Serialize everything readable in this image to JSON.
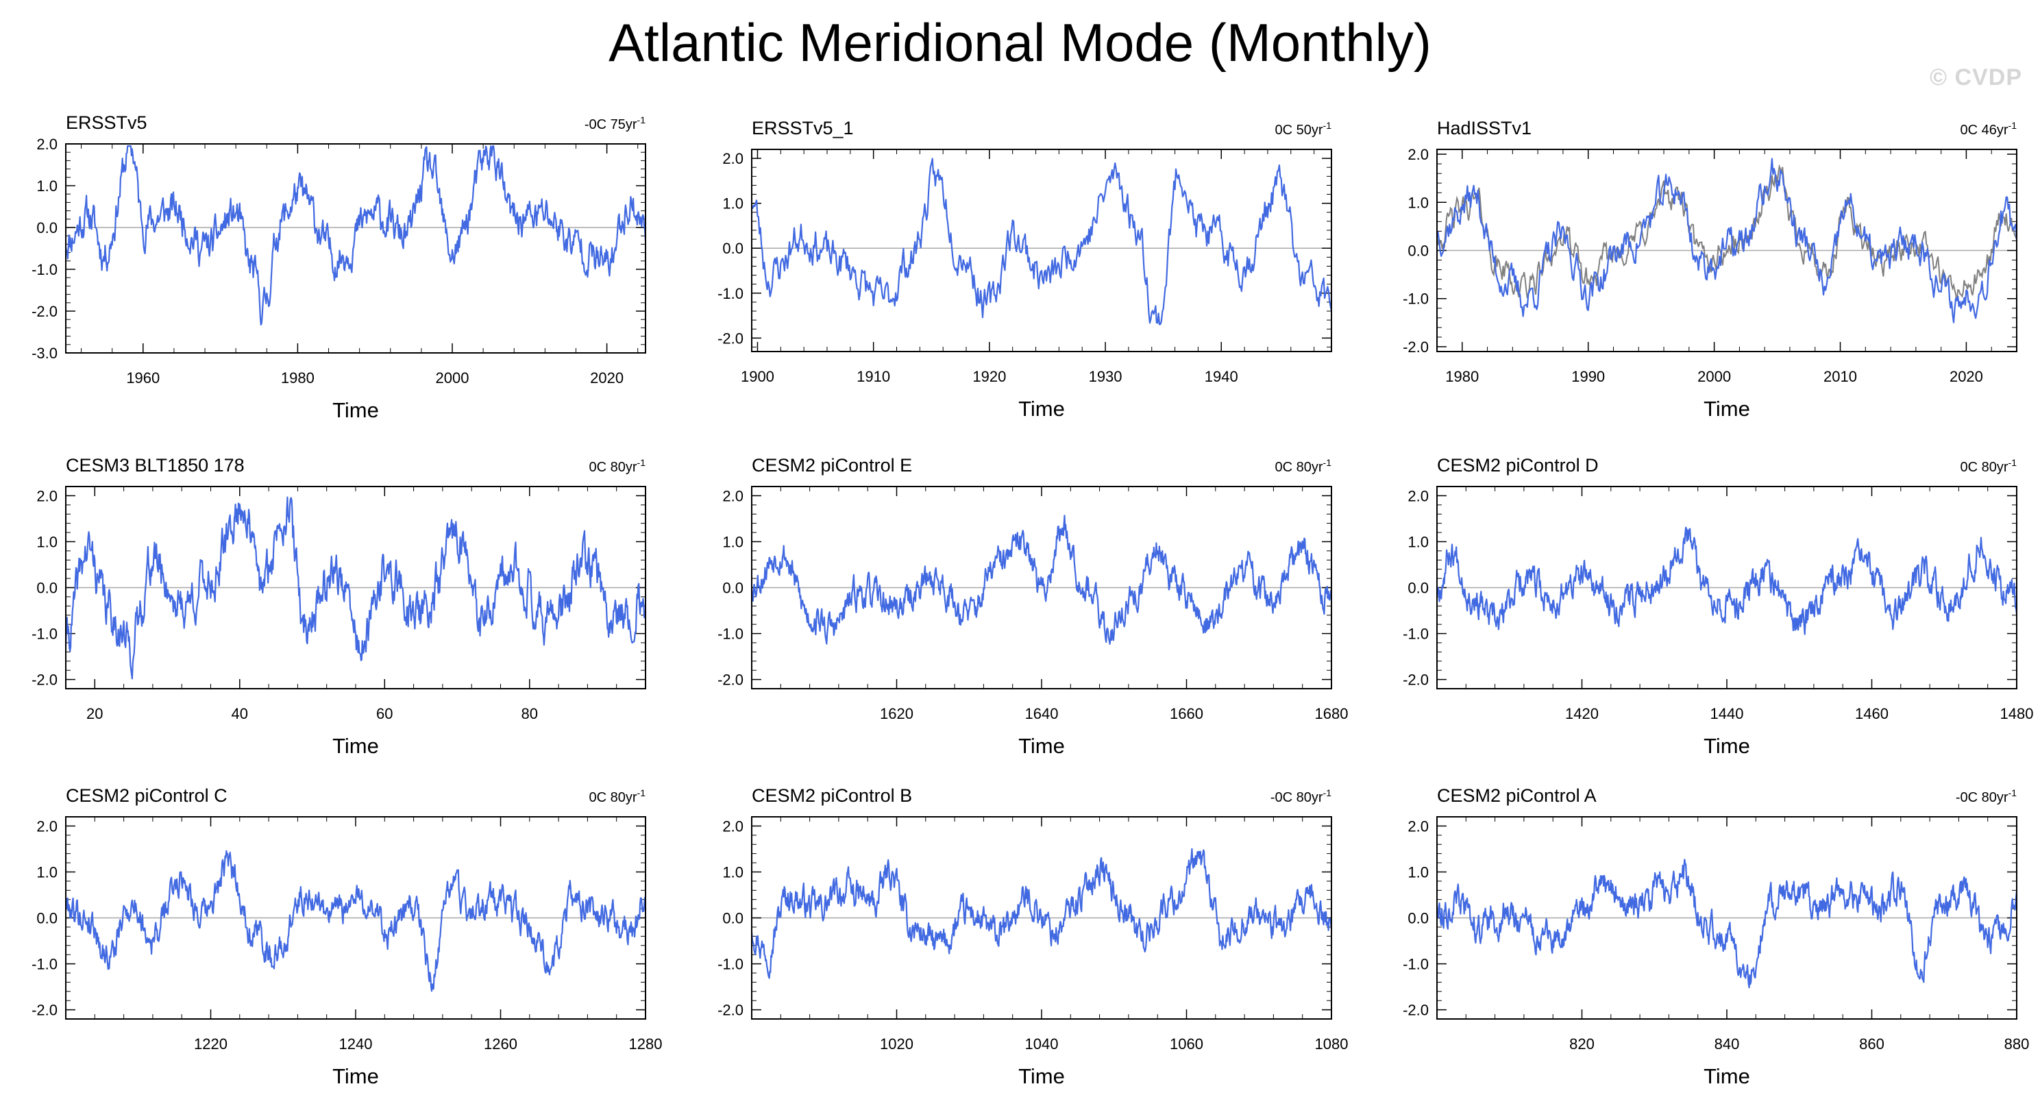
{
  "title": "Atlantic Meridional Mode (Monthly)",
  "watermark": "© CVDP",
  "colors": {
    "series": "#4169e1",
    "secondary_series": "#808080",
    "zero_line": "#a8a8a8",
    "axis": "#000000"
  },
  "chart_data": [
    {
      "type": "line",
      "title": "ERSSTv5",
      "trend": "-0C 75yr",
      "trend_unit": "-1",
      "xlabel": "Time",
      "xlim": [
        1950,
        2025
      ],
      "ylim": [
        -3.0,
        2.0
      ],
      "xticks": [
        1960,
        1980,
        2000,
        2020
      ],
      "xtick_labels": [
        "1960",
        "1980",
        "2000",
        "2020"
      ],
      "yticks": [
        -3.0,
        -2.0,
        -1.0,
        0.0,
        1.0,
        2.0
      ],
      "ytick_labels": [
        "-3.0",
        "-2.0",
        "-1.0",
        "0.0",
        "1.0",
        "2.0"
      ],
      "series_seed": 11,
      "series_anchors": [
        [
          1950,
          -0.3
        ],
        [
          1953,
          0.3
        ],
        [
          1955,
          -0.6
        ],
        [
          1958.5,
          1.9
        ],
        [
          1960,
          0.1
        ],
        [
          1964,
          0.4
        ],
        [
          1968,
          -0.5
        ],
        [
          1972,
          0.3
        ],
        [
          1974,
          -1.0
        ],
        [
          1975.5,
          -1.9
        ],
        [
          1978,
          0.2
        ],
        [
          1980,
          0.8
        ],
        [
          1985,
          -0.7
        ],
        [
          1990,
          0.3
        ],
        [
          1994,
          -0.2
        ],
        [
          1997,
          1.4
        ],
        [
          2000,
          -0.6
        ],
        [
          2005,
          1.8
        ],
        [
          2008,
          0.2
        ],
        [
          2012,
          0.3
        ],
        [
          2016,
          -0.4
        ],
        [
          2020,
          -0.9
        ],
        [
          2023,
          0.6
        ],
        [
          2025,
          0.0
        ]
      ],
      "series_noise": 0.45,
      "secondary_series": false
    },
    {
      "type": "line",
      "title": "ERSSTv5_1",
      "trend": "0C 50yr",
      "trend_unit": "-1",
      "xlabel": "Time",
      "xlim": [
        1899.5,
        1949.5
      ],
      "ylim": [
        -2.3,
        2.2
      ],
      "xticks": [
        1900,
        1910,
        1920,
        1930,
        1940
      ],
      "xtick_labels": [
        "1900",
        "1910",
        "1920",
        "1930",
        "1940"
      ],
      "yticks": [
        -2.0,
        -1.0,
        0.0,
        1.0,
        2.0
      ],
      "ytick_labels": [
        "-2.0",
        "-1.0",
        "0.0",
        "1.0",
        "2.0"
      ],
      "series_seed": 23,
      "series_anchors": [
        [
          1899.5,
          1.1
        ],
        [
          1901,
          -0.6
        ],
        [
          1904,
          0.3
        ],
        [
          1907,
          -0.3
        ],
        [
          1911,
          -1.2
        ],
        [
          1913,
          -0.3
        ],
        [
          1915.5,
          1.5
        ],
        [
          1917.5,
          0.0
        ],
        [
          1920,
          -1.3
        ],
        [
          1922,
          0.3
        ],
        [
          1925,
          -0.7
        ],
        [
          1928,
          0.2
        ],
        [
          1931,
          1.6
        ],
        [
          1932.5,
          0.6
        ],
        [
          1934.5,
          -1.6
        ],
        [
          1936.5,
          1.8
        ],
        [
          1938,
          0.4
        ],
        [
          1942,
          -0.3
        ],
        [
          1945,
          1.4
        ],
        [
          1947,
          -0.7
        ],
        [
          1949.5,
          -1.2
        ]
      ],
      "series_noise": 0.45,
      "secondary_series": false
    },
    {
      "type": "line",
      "title": "HadISSTv1",
      "trend": "0C 46yr",
      "trend_unit": "-1",
      "xlabel": "Time",
      "xlim": [
        1978,
        2024
      ],
      "ylim": [
        -2.1,
        2.1
      ],
      "xticks": [
        1980,
        1990,
        2000,
        2010,
        2020
      ],
      "xtick_labels": [
        "1980",
        "1990",
        "2000",
        "2010",
        "2020"
      ],
      "yticks": [
        -2.0,
        -1.0,
        0.0,
        1.0,
        2.0
      ],
      "ytick_labels": [
        "-2.0",
        "-1.0",
        "0.0",
        "1.0",
        "2.0"
      ],
      "series_seed": 37,
      "series_anchors": [
        [
          1978,
          0.4
        ],
        [
          1981,
          1.1
        ],
        [
          1983,
          -0.5
        ],
        [
          1985,
          -1.0
        ],
        [
          1988,
          0.2
        ],
        [
          1990,
          -0.8
        ],
        [
          1993,
          0.1
        ],
        [
          1997,
          1.3
        ],
        [
          1999,
          -0.3
        ],
        [
          2002,
          0.1
        ],
        [
          2005,
          1.6
        ],
        [
          2007,
          0.2
        ],
        [
          2009,
          -0.8
        ],
        [
          2010.5,
          0.9
        ],
        [
          2013,
          -0.3
        ],
        [
          2016,
          0.2
        ],
        [
          2019,
          -1.1
        ],
        [
          2021,
          -0.8
        ],
        [
          2023,
          0.8
        ],
        [
          2024,
          0.0
        ]
      ],
      "series_noise": 0.4,
      "secondary_series": true
    },
    {
      "type": "line",
      "title": "CESM3 BLT1850 178",
      "trend": "0C 80yr",
      "trend_unit": "-1",
      "xlabel": "Time",
      "xlim": [
        16,
        96
      ],
      "ylim": [
        -2.2,
        2.2
      ],
      "xticks": [
        20,
        40,
        60,
        80
      ],
      "xtick_labels": [
        "20",
        "40",
        "60",
        "80"
      ],
      "yticks": [
        -2.0,
        -1.0,
        0.0,
        1.0,
        2.0
      ],
      "ytick_labels": [
        "-2.0",
        "-1.0",
        "0.0",
        "1.0",
        "2.0"
      ],
      "series_seed": 41,
      "series_anchors": [
        [
          16,
          -1.1
        ],
        [
          19,
          0.8
        ],
        [
          22,
          -0.5
        ],
        [
          25,
          -1.3
        ],
        [
          28,
          0.6
        ],
        [
          32,
          -0.4
        ],
        [
          36,
          0.2
        ],
        [
          40.5,
          1.8
        ],
        [
          43,
          0.0
        ],
        [
          46.5,
          1.8
        ],
        [
          49,
          -0.8
        ],
        [
          53,
          0.4
        ],
        [
          57,
          -1.3
        ],
        [
          60,
          0.3
        ],
        [
          65,
          -0.6
        ],
        [
          70.5,
          1.2
        ],
        [
          73,
          -0.8
        ],
        [
          78,
          0.3
        ],
        [
          83,
          -0.7
        ],
        [
          88,
          0.5
        ],
        [
          92,
          -0.6
        ],
        [
          96,
          -0.3
        ]
      ],
      "series_noise": 0.5,
      "secondary_series": false
    },
    {
      "type": "line",
      "title": "CESM2 piControl E",
      "trend": "0C 80yr",
      "trend_unit": "-1",
      "xlabel": "Time",
      "xlim": [
        1600,
        1680
      ],
      "ylim": [
        -2.2,
        2.2
      ],
      "xticks": [
        1620,
        1640,
        1660,
        1680
      ],
      "xtick_labels": [
        "1620",
        "1640",
        "1660",
        "1680"
      ],
      "yticks": [
        -2.0,
        -1.0,
        0.0,
        1.0,
        2.0
      ],
      "ytick_labels": [
        "-2.0",
        "-1.0",
        "0.0",
        "1.0",
        "2.0"
      ],
      "series_seed": 53,
      "series_anchors": [
        [
          1600,
          0.1
        ],
        [
          1604,
          0.8
        ],
        [
          1608,
          -0.6
        ],
        [
          1611,
          -0.9
        ],
        [
          1615,
          -0.1
        ],
        [
          1620,
          -0.4
        ],
        [
          1625,
          0.2
        ],
        [
          1630,
          -0.6
        ],
        [
          1634,
          0.5
        ],
        [
          1638,
          1.0
        ],
        [
          1640,
          -0.1
        ],
        [
          1643,
          1.3
        ],
        [
          1646,
          0.1
        ],
        [
          1649,
          -0.9
        ],
        [
          1653,
          -0.2
        ],
        [
          1656,
          0.9
        ],
        [
          1659,
          0.0
        ],
        [
          1663,
          -0.8
        ],
        [
          1668,
          0.4
        ],
        [
          1672,
          -0.3
        ],
        [
          1676,
          0.8
        ],
        [
          1680,
          -0.3
        ]
      ],
      "series_noise": 0.35,
      "secondary_series": false
    },
    {
      "type": "line",
      "title": "CESM2 piControl D",
      "trend": "0C 80yr",
      "trend_unit": "-1",
      "xlabel": "Time",
      "xlim": [
        1400,
        1480
      ],
      "ylim": [
        -2.2,
        2.2
      ],
      "xticks": [
        1420,
        1440,
        1460,
        1480
      ],
      "xtick_labels": [
        "1420",
        "1440",
        "1460",
        "1480"
      ],
      "yticks": [
        -2.0,
        -1.0,
        0.0,
        1.0,
        2.0
      ],
      "ytick_labels": [
        "-2.0",
        "-1.0",
        "0.0",
        "1.0",
        "2.0"
      ],
      "series_seed": 67,
      "series_anchors": [
        [
          1400,
          0.0
        ],
        [
          1402,
          0.8
        ],
        [
          1405,
          -0.2
        ],
        [
          1408,
          -0.8
        ],
        [
          1412,
          0.2
        ],
        [
          1416,
          -0.3
        ],
        [
          1420,
          0.2
        ],
        [
          1425,
          -0.4
        ],
        [
          1430,
          0.1
        ],
        [
          1434.5,
          1.1
        ],
        [
          1437,
          0.0
        ],
        [
          1441,
          -0.4
        ],
        [
          1445,
          0.3
        ],
        [
          1450,
          -0.8
        ],
        [
          1454,
          0.1
        ],
        [
          1459,
          0.5
        ],
        [
          1463,
          -0.6
        ],
        [
          1467,
          0.2
        ],
        [
          1471,
          -0.3
        ],
        [
          1475,
          0.9
        ],
        [
          1478,
          0.0
        ],
        [
          1480,
          -0.2
        ]
      ],
      "series_noise": 0.35,
      "secondary_series": false
    },
    {
      "type": "line",
      "title": "CESM2 piControl C",
      "trend": "0C 80yr",
      "trend_unit": "-1",
      "xlabel": "Time",
      "xlim": [
        1200,
        1280
      ],
      "ylim": [
        -2.2,
        2.2
      ],
      "xticks": [
        1220,
        1240,
        1260,
        1280
      ],
      "xtick_labels": [
        "1220",
        "1240",
        "1260",
        "1280"
      ],
      "yticks": [
        -2.0,
        -1.0,
        0.0,
        1.0,
        2.0
      ],
      "ytick_labels": [
        "-2.0",
        "-1.0",
        "0.0",
        "1.0",
        "2.0"
      ],
      "series_seed": 79,
      "series_anchors": [
        [
          1200,
          0.3
        ],
        [
          1203,
          0.0
        ],
        [
          1206,
          -0.8
        ],
        [
          1209,
          0.3
        ],
        [
          1212,
          -0.4
        ],
        [
          1216,
          0.9
        ],
        [
          1219,
          0.0
        ],
        [
          1222.5,
          1.1
        ],
        [
          1226,
          -0.3
        ],
        [
          1229,
          -0.8
        ],
        [
          1233,
          0.5
        ],
        [
          1237,
          0.1
        ],
        [
          1241,
          0.4
        ],
        [
          1245,
          -0.3
        ],
        [
          1248,
          0.3
        ],
        [
          1250.5,
          -1.3
        ],
        [
          1253,
          0.7
        ],
        [
          1256,
          0.2
        ],
        [
          1260,
          0.3
        ],
        [
          1264,
          -0.2
        ],
        [
          1267,
          -0.9
        ],
        [
          1270,
          0.4
        ],
        [
          1274,
          0.0
        ],
        [
          1278,
          -0.3
        ],
        [
          1280,
          0.4
        ]
      ],
      "series_noise": 0.35,
      "secondary_series": false
    },
    {
      "type": "line",
      "title": "CESM2 piControl B",
      "trend": "-0C 80yr",
      "trend_unit": "-1",
      "xlabel": "Time",
      "xlim": [
        1000,
        1080
      ],
      "ylim": [
        -2.2,
        2.2
      ],
      "xticks": [
        1020,
        1040,
        1060,
        1080
      ],
      "xtick_labels": [
        "1020",
        "1040",
        "1060",
        "1080"
      ],
      "yticks": [
        -2.0,
        -1.0,
        0.0,
        1.0,
        2.0
      ],
      "ytick_labels": [
        "-2.0",
        "-1.0",
        "0.0",
        "1.0",
        "2.0"
      ],
      "series_seed": 97,
      "series_anchors": [
        [
          1000,
          -0.2
        ],
        [
          1002,
          -0.7
        ],
        [
          1005,
          0.5
        ],
        [
          1009,
          0.2
        ],
        [
          1013,
          0.6
        ],
        [
          1017,
          0.3
        ],
        [
          1019,
          1.0
        ],
        [
          1022,
          -0.2
        ],
        [
          1026,
          -0.6
        ],
        [
          1030,
          0.1
        ],
        [
          1034,
          -0.4
        ],
        [
          1038,
          0.4
        ],
        [
          1042,
          -0.3
        ],
        [
          1045,
          0.4
        ],
        [
          1048,
          1.1
        ],
        [
          1051,
          0.3
        ],
        [
          1054,
          -0.4
        ],
        [
          1058,
          0.4
        ],
        [
          1062,
          1.2
        ],
        [
          1065,
          -0.5
        ],
        [
          1069,
          0.1
        ],
        [
          1073,
          -0.2
        ],
        [
          1077,
          0.3
        ],
        [
          1080,
          -0.1
        ]
      ],
      "series_noise": 0.35,
      "secondary_series": false
    },
    {
      "type": "line",
      "title": "CESM2 piControl A",
      "trend": "-0C 80yr",
      "trend_unit": "-1",
      "xlabel": "Time",
      "xlim": [
        800,
        880
      ],
      "ylim": [
        -2.2,
        2.2
      ],
      "xticks": [
        820,
        840,
        860,
        880
      ],
      "xtick_labels": [
        "820",
        "840",
        "860",
        "880"
      ],
      "yticks": [
        -2.0,
        -1.0,
        0.0,
        1.0,
        2.0
      ],
      "ytick_labels": [
        "-2.0",
        "-1.0",
        "0.0",
        "1.0",
        "2.0"
      ],
      "series_seed": 113,
      "series_anchors": [
        [
          800,
          0.2
        ],
        [
          803,
          0.3
        ],
        [
          806,
          -0.2
        ],
        [
          810,
          0.1
        ],
        [
          814,
          -0.3
        ],
        [
          817,
          -0.6
        ],
        [
          820,
          0.3
        ],
        [
          823,
          0.7
        ],
        [
          827,
          0.2
        ],
        [
          831,
          0.6
        ],
        [
          834,
          0.9
        ],
        [
          837,
          -0.2
        ],
        [
          840,
          -0.5
        ],
        [
          843,
          -1.2
        ],
        [
          846,
          0.3
        ],
        [
          849,
          0.5
        ],
        [
          853,
          0.3
        ],
        [
          857,
          0.5
        ],
        [
          861,
          0.2
        ],
        [
          864,
          0.7
        ],
        [
          866.5,
          -1.1
        ],
        [
          869,
          0.1
        ],
        [
          873,
          0.6
        ],
        [
          876,
          -0.5
        ],
        [
          880,
          0.2
        ]
      ],
      "series_noise": 0.35,
      "secondary_series": false
    }
  ]
}
